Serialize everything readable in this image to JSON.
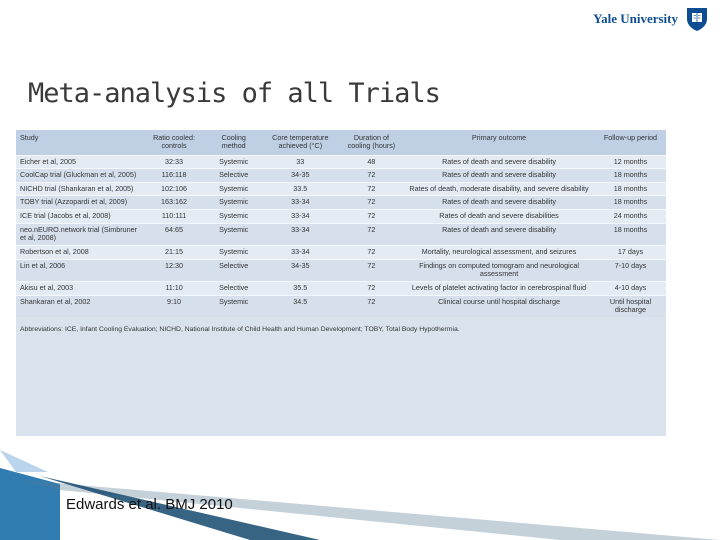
{
  "logo": {
    "text": "Yale University"
  },
  "slide": {
    "title": "Meta-analysis of all Trials",
    "citation": "Edwards et al. BMJ 2010"
  },
  "table": {
    "headers": [
      "Study",
      "Ratio cooled: controls",
      "Cooling method",
      "Core temperature achieved (°C)",
      "Duration of cooling (hours)",
      "Primary outcome",
      "Follow-up period"
    ],
    "rows": [
      [
        "Eicher et al, 2005",
        "32:33",
        "Systemic",
        "33",
        "48",
        "Rates of death and severe disability",
        "12 months"
      ],
      [
        "CoolCap trial (Gluckman et al, 2005)",
        "116:118",
        "Selective",
        "34-35",
        "72",
        "Rates of death and severe disability",
        "18 months"
      ],
      [
        "NICHD trial (Shankaran et al, 2005)",
        "102:106",
        "Systemic",
        "33.5",
        "72",
        "Rates of death, moderate disability, and severe disability",
        "18 months"
      ],
      [
        "TOBY trial (Azzopardi et al, 2009)",
        "163:162",
        "Systemic",
        "33-34",
        "72",
        "Rates of death and severe disability",
        "18 months"
      ],
      [
        "ICE trial (Jacobs et al, 2008)",
        "110:111",
        "Systemic",
        "33-34",
        "72",
        "Rates of death and severe disabilities",
        "24 months"
      ],
      [
        "neo.nEURO.network trial (Simbruner et al, 2008)",
        "64:65",
        "Systemic",
        "33-34",
        "72",
        "Rates of death and severe disability",
        "18 months"
      ],
      [
        "Robertson et al, 2008",
        "21:15",
        "Systemic",
        "33-34",
        "72",
        "Mortality, neurological assessment, and seizures",
        "17 days"
      ],
      [
        "Lin et al, 2006",
        "12:30",
        "Selective",
        "34-35",
        "72",
        "Findings on computed tomogram and neurological assessment",
        "7-10 days"
      ],
      [
        "Akisu et al, 2003",
        "11:10",
        "Selective",
        "35.5",
        "72",
        "Levels of platelet activating factor in cerebrospinal fluid",
        "4-10 days"
      ],
      [
        "Shankaran et al, 2002",
        "9:10",
        "Systemic",
        "34.5",
        "72",
        "Clinical course until hospital discharge",
        "Until hospital discharge"
      ]
    ],
    "abbreviations": "Abbreviations: ICE, Infant Cooling Evaluation; NICHD, National Institute of Child Health and Human Development; TOBY, Total Body Hypothermia."
  }
}
